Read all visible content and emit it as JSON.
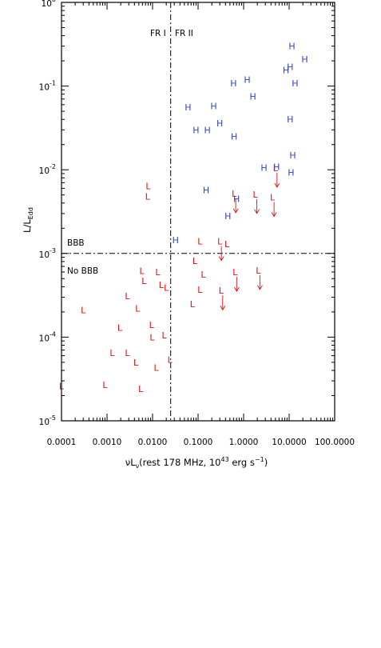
{
  "chart_data": {
    "type": "scatter",
    "xlabel": "νLν(rest 178 MHz, 10¹³ erg s⁻¹)",
    "ylabel": "L/L_Edd",
    "x_scale": "log",
    "y_scale": "log",
    "xlim": [
      0.0001,
      100.0
    ],
    "ylim": [
      1e-05,
      1.0
    ],
    "x_ticks": [
      "0.0001",
      "0.0010",
      "0.0100",
      "0.1000",
      "1.0000",
      "10.0000",
      "100.0000"
    ],
    "y_ticks": [
      {
        "base": "10",
        "exp": "-5",
        "value": 1e-05
      },
      {
        "base": "10",
        "exp": "-4",
        "value": 0.0001
      },
      {
        "base": "10",
        "exp": "-3",
        "value": 0.001
      },
      {
        "base": "10",
        "exp": "-2",
        "value": 0.01
      },
      {
        "base": "10",
        "exp": "-1",
        "value": 0.1
      },
      {
        "base": "10",
        "exp": "0",
        "value": 1
      }
    ],
    "annotations": {
      "fr1": "FR I",
      "fr2": "FR II",
      "bbb": "BBB",
      "no_bbb": "No BBB"
    },
    "fr_divider_x": 0.025,
    "bbb_divider_y": 0.001,
    "colors": {
      "H": "#2d3fd6",
      "L": "#e01010",
      "axis": "#000000"
    },
    "series": [
      {
        "marker": "H",
        "points": [
          [
            11.5,
            0.3
          ],
          [
            22.0,
            0.21
          ],
          [
            8.5,
            0.155
          ],
          [
            10.5,
            0.17
          ],
          [
            13.5,
            0.108
          ],
          [
            1.2,
            0.12
          ],
          [
            0.6,
            0.108
          ],
          [
            1.6,
            0.075
          ],
          [
            0.06,
            0.056
          ],
          [
            0.22,
            0.058
          ],
          [
            0.09,
            0.03
          ],
          [
            0.16,
            0.03
          ],
          [
            0.3,
            0.036
          ],
          [
            0.62,
            0.025
          ],
          [
            10.5,
            0.04
          ],
          [
            12.0,
            0.015
          ],
          [
            2.8,
            0.0106
          ],
          [
            5.3,
            0.0108
          ],
          [
            11.0,
            0.0093
          ],
          [
            0.15,
            0.0057
          ],
          [
            0.7,
            0.0045
          ],
          [
            0.45,
            0.0028
          ],
          [
            0.032,
            0.00145
          ]
        ]
      },
      {
        "marker": "L",
        "points": [
          [
            0.008,
            0.0064
          ],
          [
            0.0078,
            0.0048
          ],
          [
            0.0058,
            0.00062
          ],
          [
            0.0065,
            0.00047
          ],
          [
            0.013,
            0.0006
          ],
          [
            0.0155,
            0.00042
          ],
          [
            0.02,
            0.00039
          ],
          [
            0.0028,
            0.00031
          ],
          [
            0.0047,
            0.00022
          ],
          [
            0.0003,
            0.00021
          ],
          [
            0.0019,
            0.00013
          ],
          [
            0.0095,
            0.00014
          ],
          [
            0.0098,
            0.0001
          ],
          [
            0.018,
            0.000105
          ],
          [
            0.0013,
            6.5e-05
          ],
          [
            0.0028,
            6.5e-05
          ],
          [
            0.0043,
            5e-05
          ],
          [
            0.012,
            4.3e-05
          ],
          [
            0.024,
            5.4e-05
          ],
          [
            0.0009,
            2.7e-05
          ],
          [
            0.0055,
            2.4e-05
          ],
          [
            0.0001,
            2.6e-05
          ],
          [
            0.11,
            0.0014
          ],
          [
            0.085,
            0.00082
          ],
          [
            0.43,
            0.0013
          ],
          [
            0.13,
            0.00056
          ],
          [
            0.075,
            0.00025
          ],
          [
            0.11,
            0.00037
          ]
        ]
      },
      {
        "marker": "L",
        "upper_limit": true,
        "points": [
          [
            0.62,
            0.0052
          ],
          [
            1.8,
            0.0051
          ],
          [
            5.0,
            0.0105
          ],
          [
            4.3,
            0.0047
          ],
          [
            0.3,
            0.0014
          ],
          [
            0.65,
            0.0006
          ],
          [
            2.1,
            0.00063
          ],
          [
            0.32,
            0.00036
          ]
        ]
      }
    ]
  }
}
